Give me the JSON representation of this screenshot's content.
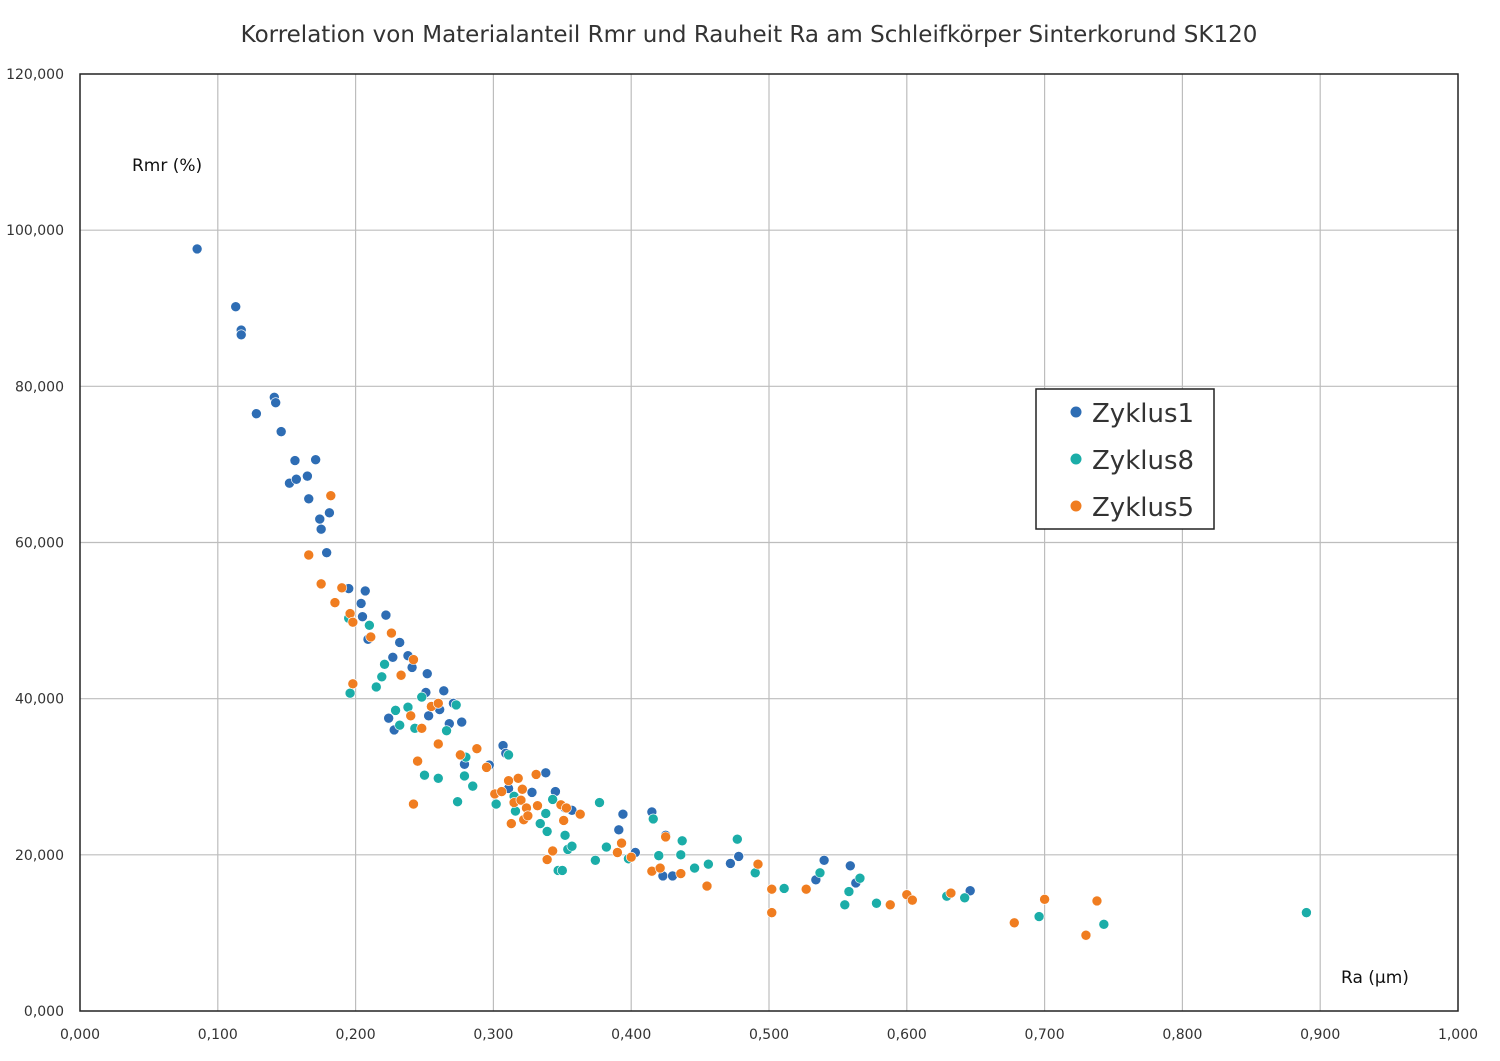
{
  "chart_data": {
    "type": "scatter",
    "title": "Korrelation von Materialanteil Rmr und Rauheit Ra am Schleifkörper Sinterkorund SK120",
    "xlabel": "Ra (µm)",
    "ylabel": "Rmr (%)",
    "xlim": [
      0,
      1.0
    ],
    "ylim": [
      0,
      120
    ],
    "x_ticks": [
      "0,000",
      "0,100",
      "0,200",
      "0,300",
      "0,400",
      "0,500",
      "0,600",
      "0,700",
      "0,800",
      "0,900",
      "1,000"
    ],
    "y_ticks": [
      "0,000",
      "20,000",
      "40,000",
      "60,000",
      "80,000",
      "100,000",
      "120,000"
    ],
    "grid": true,
    "legend_position": "right",
    "series": [
      {
        "name": "Zyklus1",
        "color": "#2e6db4",
        "points": [
          [
            0.085,
            97.6
          ],
          [
            0.113,
            90.2
          ],
          [
            0.117,
            87.2
          ],
          [
            0.117,
            86.6
          ],
          [
            0.128,
            76.5
          ],
          [
            0.141,
            78.6
          ],
          [
            0.142,
            77.9
          ],
          [
            0.146,
            74.2
          ],
          [
            0.152,
            67.6
          ],
          [
            0.156,
            70.5
          ],
          [
            0.157,
            68.1
          ],
          [
            0.165,
            68.5
          ],
          [
            0.166,
            65.6
          ],
          [
            0.171,
            70.6
          ],
          [
            0.174,
            63.0
          ],
          [
            0.175,
            61.7
          ],
          [
            0.179,
            58.7
          ],
          [
            0.181,
            63.8
          ],
          [
            0.195,
            54.1
          ],
          [
            0.204,
            52.2
          ],
          [
            0.205,
            50.5
          ],
          [
            0.207,
            53.8
          ],
          [
            0.209,
            47.6
          ],
          [
            0.222,
            50.7
          ],
          [
            0.224,
            37.5
          ],
          [
            0.227,
            45.3
          ],
          [
            0.228,
            36.0
          ],
          [
            0.232,
            47.2
          ],
          [
            0.238,
            45.5
          ],
          [
            0.241,
            44.0
          ],
          [
            0.251,
            40.8
          ],
          [
            0.252,
            43.2
          ],
          [
            0.253,
            37.8
          ],
          [
            0.261,
            38.6
          ],
          [
            0.264,
            41.0
          ],
          [
            0.268,
            36.8
          ],
          [
            0.271,
            39.4
          ],
          [
            0.277,
            37.0
          ],
          [
            0.279,
            31.6
          ],
          [
            0.297,
            31.5
          ],
          [
            0.307,
            34.0
          ],
          [
            0.309,
            33.0
          ],
          [
            0.311,
            28.5
          ],
          [
            0.328,
            28.0
          ],
          [
            0.338,
            30.5
          ],
          [
            0.345,
            28.1
          ],
          [
            0.352,
            26.0
          ],
          [
            0.357,
            25.7
          ],
          [
            0.391,
            23.2
          ],
          [
            0.394,
            25.2
          ],
          [
            0.403,
            20.3
          ],
          [
            0.415,
            25.5
          ],
          [
            0.423,
            17.3
          ],
          [
            0.425,
            22.5
          ],
          [
            0.43,
            17.3
          ],
          [
            0.472,
            18.9
          ],
          [
            0.478,
            19.8
          ],
          [
            0.534,
            16.8
          ],
          [
            0.54,
            19.3
          ],
          [
            0.559,
            18.6
          ],
          [
            0.563,
            16.4
          ],
          [
            0.646,
            15.4
          ]
        ]
      },
      {
        "name": "Zyklus8",
        "color": "#1bada8",
        "points": [
          [
            0.195,
            50.3
          ],
          [
            0.196,
            40.7
          ],
          [
            0.21,
            49.4
          ],
          [
            0.215,
            41.5
          ],
          [
            0.219,
            42.8
          ],
          [
            0.221,
            44.4
          ],
          [
            0.229,
            38.5
          ],
          [
            0.232,
            36.6
          ],
          [
            0.238,
            38.9
          ],
          [
            0.243,
            36.2
          ],
          [
            0.248,
            40.2
          ],
          [
            0.25,
            30.2
          ],
          [
            0.26,
            29.8
          ],
          [
            0.266,
            35.9
          ],
          [
            0.273,
            39.2
          ],
          [
            0.274,
            26.8
          ],
          [
            0.279,
            30.1
          ],
          [
            0.28,
            32.5
          ],
          [
            0.285,
            28.8
          ],
          [
            0.295,
            31.2
          ],
          [
            0.302,
            26.5
          ],
          [
            0.311,
            32.8
          ],
          [
            0.315,
            27.5
          ],
          [
            0.316,
            25.6
          ],
          [
            0.334,
            24.0
          ],
          [
            0.338,
            25.3
          ],
          [
            0.339,
            23.0
          ],
          [
            0.343,
            27.1
          ],
          [
            0.347,
            18.0
          ],
          [
            0.35,
            18.0
          ],
          [
            0.352,
            22.5
          ],
          [
            0.354,
            20.7
          ],
          [
            0.357,
            21.1
          ],
          [
            0.374,
            19.3
          ],
          [
            0.377,
            26.7
          ],
          [
            0.382,
            21.0
          ],
          [
            0.398,
            19.5
          ],
          [
            0.416,
            24.6
          ],
          [
            0.42,
            19.9
          ],
          [
            0.436,
            20.0
          ],
          [
            0.437,
            21.8
          ],
          [
            0.446,
            18.3
          ],
          [
            0.456,
            18.8
          ],
          [
            0.477,
            22.0
          ],
          [
            0.49,
            17.7
          ],
          [
            0.511,
            15.7
          ],
          [
            0.537,
            17.7
          ],
          [
            0.555,
            13.6
          ],
          [
            0.558,
            15.3
          ],
          [
            0.566,
            17.0
          ],
          [
            0.578,
            13.8
          ],
          [
            0.629,
            14.7
          ],
          [
            0.642,
            14.5
          ],
          [
            0.696,
            12.1
          ],
          [
            0.743,
            11.1
          ],
          [
            0.89,
            12.6
          ]
        ]
      },
      {
        "name": "Zyklus5",
        "color": "#f07d20",
        "points": [
          [
            0.166,
            58.4
          ],
          [
            0.175,
            54.7
          ],
          [
            0.182,
            66.0
          ],
          [
            0.185,
            52.3
          ],
          [
            0.19,
            54.2
          ],
          [
            0.196,
            50.9
          ],
          [
            0.198,
            49.8
          ],
          [
            0.198,
            41.9
          ],
          [
            0.211,
            47.9
          ],
          [
            0.226,
            48.4
          ],
          [
            0.233,
            43.0
          ],
          [
            0.24,
            37.8
          ],
          [
            0.242,
            45.0
          ],
          [
            0.242,
            26.5
          ],
          [
            0.245,
            32.0
          ],
          [
            0.248,
            36.2
          ],
          [
            0.255,
            39.0
          ],
          [
            0.26,
            34.2
          ],
          [
            0.26,
            39.4
          ],
          [
            0.276,
            32.8
          ],
          [
            0.288,
            33.6
          ],
          [
            0.295,
            31.2
          ],
          [
            0.301,
            27.8
          ],
          [
            0.306,
            28.1
          ],
          [
            0.311,
            29.5
          ],
          [
            0.313,
            24.0
          ],
          [
            0.315,
            26.7
          ],
          [
            0.318,
            29.8
          ],
          [
            0.32,
            27.0
          ],
          [
            0.321,
            28.4
          ],
          [
            0.322,
            24.5
          ],
          [
            0.324,
            26.0
          ],
          [
            0.325,
            25.0
          ],
          [
            0.331,
            30.3
          ],
          [
            0.332,
            26.3
          ],
          [
            0.339,
            19.4
          ],
          [
            0.343,
            20.5
          ],
          [
            0.349,
            26.4
          ],
          [
            0.351,
            24.4
          ],
          [
            0.353,
            26.0
          ],
          [
            0.363,
            25.2
          ],
          [
            0.39,
            20.3
          ],
          [
            0.393,
            21.5
          ],
          [
            0.4,
            19.7
          ],
          [
            0.415,
            17.9
          ],
          [
            0.421,
            18.3
          ],
          [
            0.425,
            22.3
          ],
          [
            0.436,
            17.6
          ],
          [
            0.455,
            16.0
          ],
          [
            0.492,
            18.8
          ],
          [
            0.502,
            15.6
          ],
          [
            0.502,
            12.6
          ],
          [
            0.527,
            15.6
          ],
          [
            0.588,
            13.6
          ],
          [
            0.6,
            14.9
          ],
          [
            0.604,
            14.2
          ],
          [
            0.632,
            15.1
          ],
          [
            0.678,
            11.3
          ],
          [
            0.7,
            14.3
          ],
          [
            0.73,
            9.7
          ],
          [
            0.738,
            14.1
          ]
        ]
      }
    ]
  }
}
